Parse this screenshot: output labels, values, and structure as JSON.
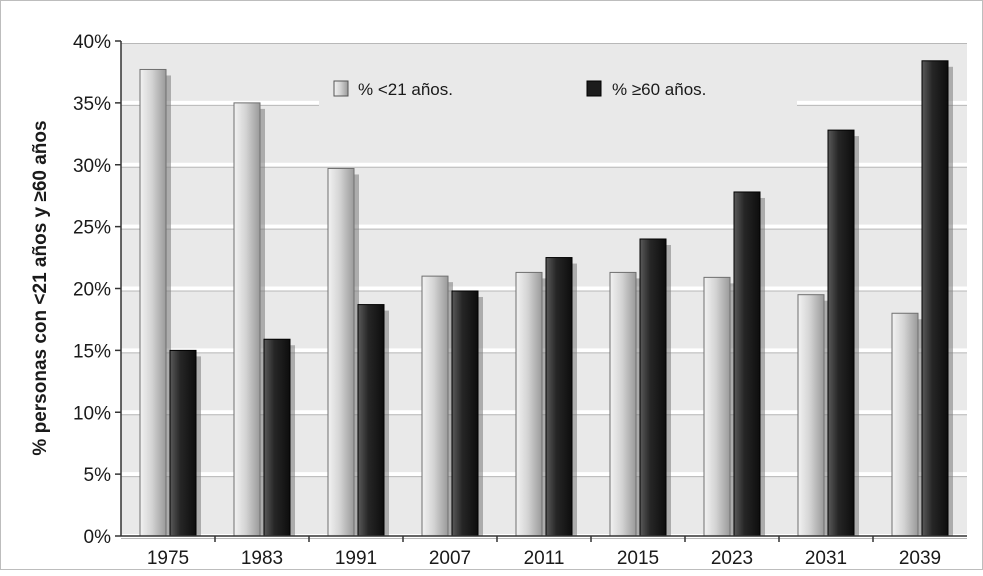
{
  "chart_data": {
    "type": "bar",
    "categories": [
      "1975",
      "1983",
      "1991",
      "2007",
      "2011",
      "2015",
      "2023",
      "2031",
      "2039"
    ],
    "series": [
      {
        "name": "% <21 años.",
        "values": [
          37.7,
          35.0,
          29.7,
          21.0,
          21.3,
          21.3,
          20.9,
          19.5,
          18.0
        ],
        "color": "#c9c9c9"
      },
      {
        "name": "% ≥60 años.",
        "values": [
          15.0,
          15.9,
          18.7,
          19.8,
          22.5,
          24.0,
          27.8,
          32.8,
          38.4
        ],
        "color": "#1c1c1c"
      }
    ],
    "ylabel": "% personas con <21 años y ≥60 años",
    "xlabel": "",
    "ylim": [
      0,
      40
    ],
    "yticks": [
      "0%",
      "5%",
      "10%",
      "15%",
      "20%",
      "25%",
      "30%",
      "35%",
      "40%"
    ],
    "grid": true,
    "legend_position": "top-center"
  },
  "colors": {
    "plot_background": "#e9e9e9",
    "gridline": "#ffffff",
    "light_bar": "#c9c9c9",
    "dark_bar": "#1c1c1c"
  }
}
